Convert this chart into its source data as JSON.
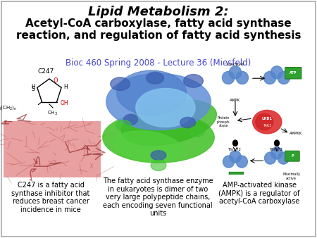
{
  "title_line1": "Lipid Metabolism 2:",
  "title_line2": "Acetyl-CoA carboxylase, fatty acid synthase\nreaction, and regulation of fatty acid synthesis",
  "subtitle": "Bioc 460 Spring 2008 - Lecture 36 (Miesfeld)",
  "bg_color": "#ffffff",
  "border_color": "#aaaaaa",
  "subtitle_color": "#4444cc",
  "caption1": "C247 is a fatty acid\nsynthase inhibitor that\nreduces breast cancer\nincidence in mice",
  "caption2": "The fatty acid synthase enzyme\nin eukaryotes is dimer of two\nvery large polypeptide chains,\neach encoding seven functional\nunits",
  "caption3": "AMP-activated kinase\n(AMPK) is a regulator of\nacetyl-CoA carboxylase",
  "title1_fs": 13,
  "title2_fs": 11,
  "subtitle_fs": 8.5,
  "caption_fs": 7.0
}
